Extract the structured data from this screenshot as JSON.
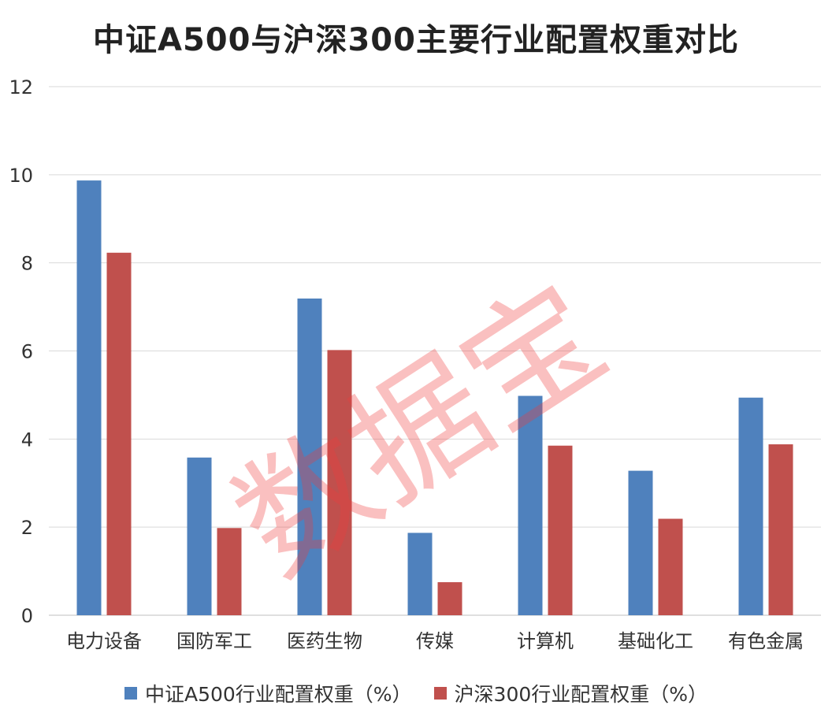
{
  "watermark": "数据宝",
  "colors": {
    "series_a": "#4f81bd",
    "series_b": "#c0504d",
    "gridline": "#d9d9d9",
    "axis_line": "#bfbfbf"
  },
  "chart_data": {
    "type": "bar",
    "title": "中证A500与沪深300主要行业配置权重对比",
    "categories": [
      "电力设备",
      "国防军工",
      "医药生物",
      "传媒",
      "计算机",
      "基础化工",
      "有色金属"
    ],
    "series": [
      {
        "name": "中证A500行业配置权重（%）",
        "values": [
          9.87,
          3.58,
          7.19,
          1.87,
          4.98,
          3.28,
          4.94
        ]
      },
      {
        "name": "沪深300行业配置权重（%）",
        "values": [
          8.23,
          1.98,
          6.02,
          0.75,
          3.85,
          2.19,
          3.88
        ]
      }
    ],
    "yticks": [
      "0",
      "2",
      "4",
      "6",
      "8",
      "10",
      "12"
    ],
    "ylim": [
      0,
      12
    ],
    "grid": true,
    "legend": "bottom"
  }
}
